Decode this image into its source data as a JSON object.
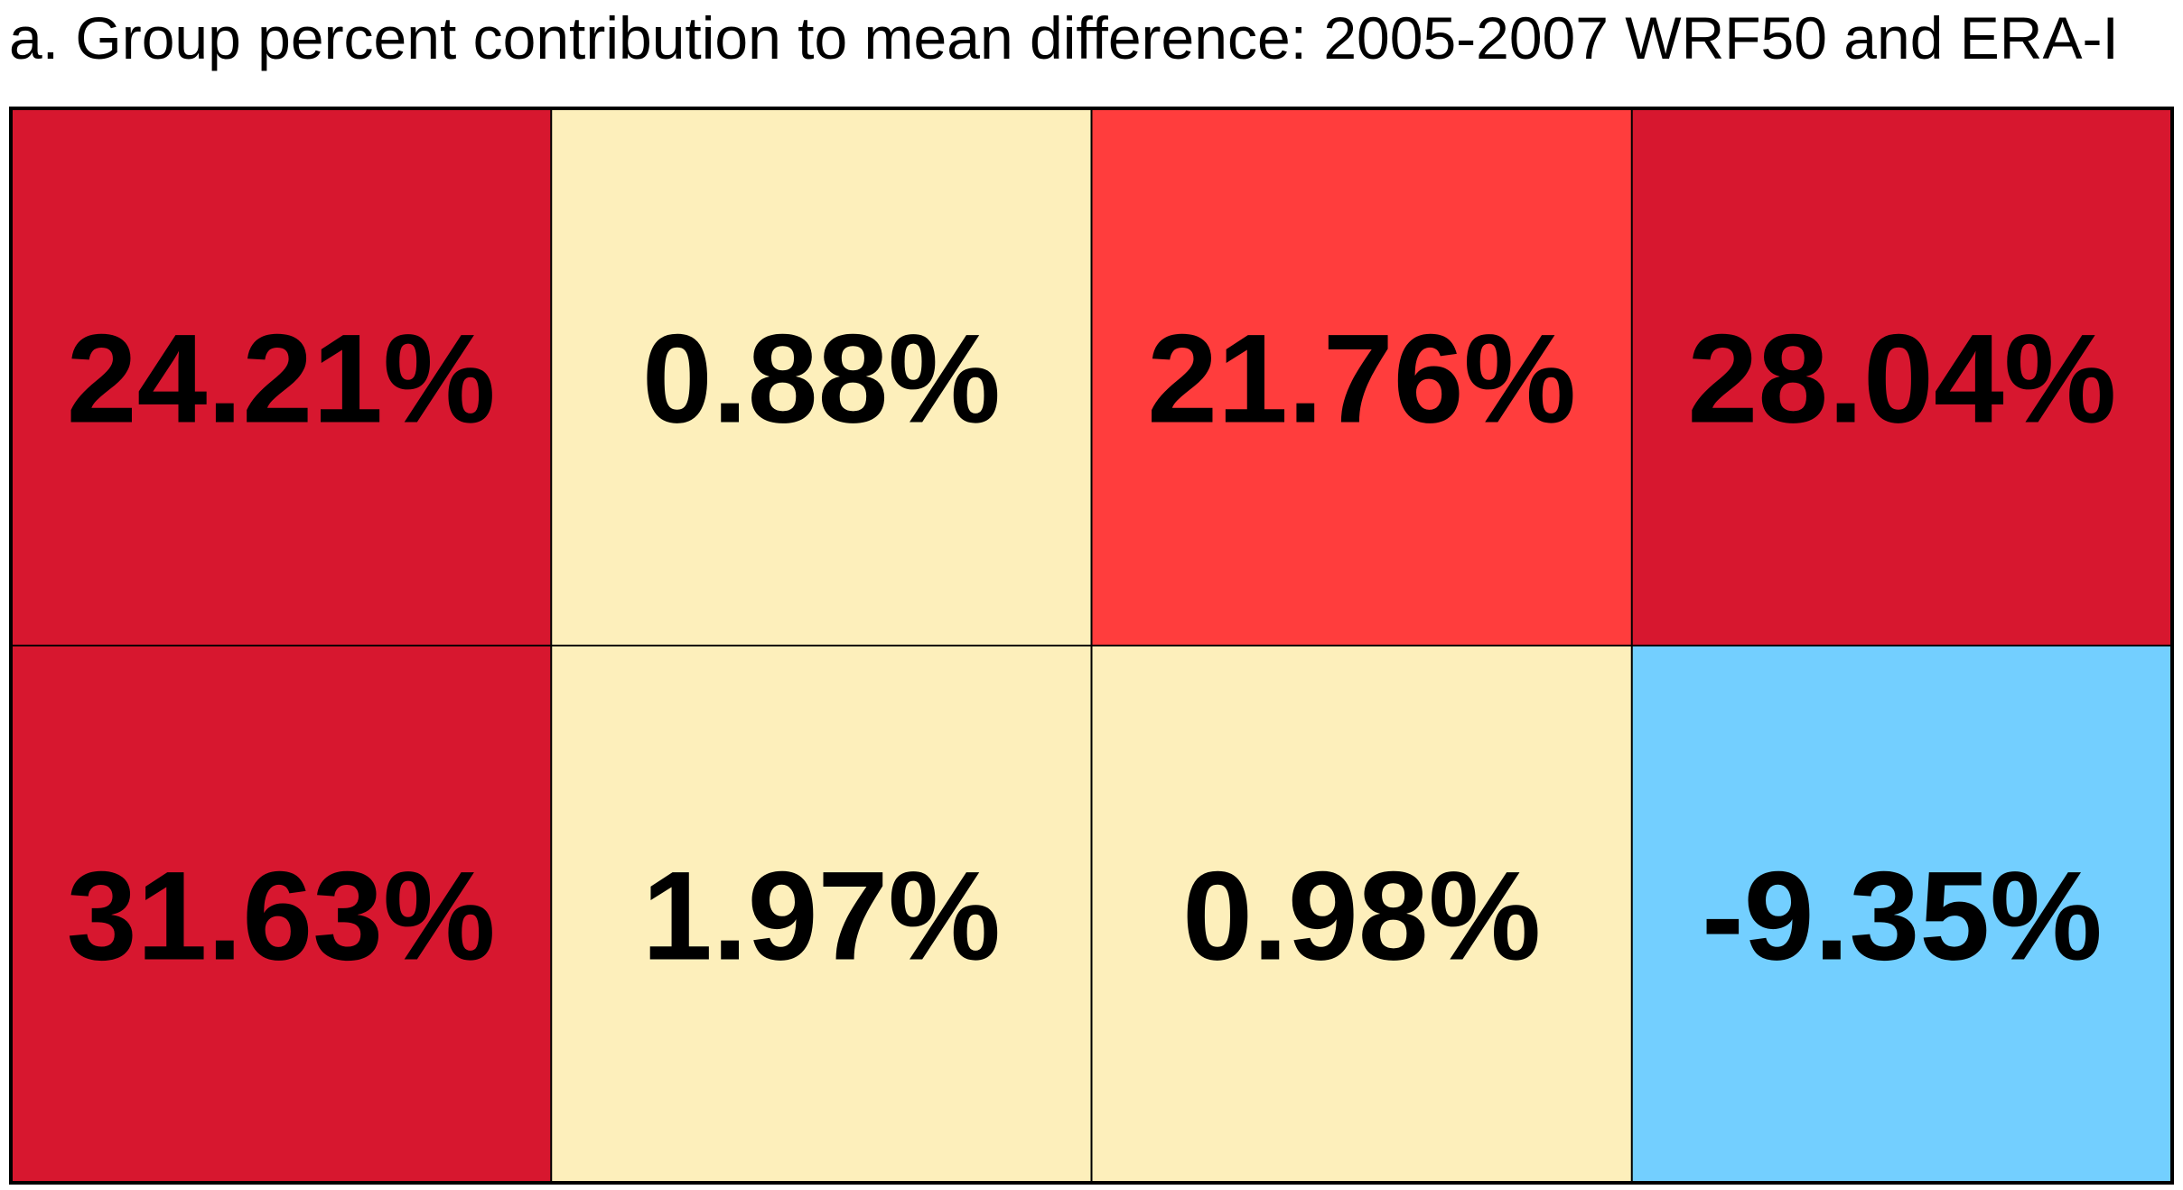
{
  "chart_data": {
    "type": "heatmap",
    "title": "a. Group percent contribution to mean difference: 2005-2007 WRF50 and ERA-I",
    "rows": 2,
    "cols": 4,
    "cells": [
      [
        {
          "value": 24.21,
          "label": "24.21%",
          "color": "#d7172f"
        },
        {
          "value": 0.88,
          "label": "0.88%",
          "color": "#fdefbb"
        },
        {
          "value": 21.76,
          "label": "21.76%",
          "color": "#ff3d3d"
        },
        {
          "value": 28.04,
          "label": "28.04%",
          "color": "#d7172f"
        }
      ],
      [
        {
          "value": 31.63,
          "label": "31.63%",
          "color": "#d7172f"
        },
        {
          "value": 1.97,
          "label": "1.97%",
          "color": "#fdefbb"
        },
        {
          "value": 0.98,
          "label": "0.98%",
          "color": "#fdefbb"
        },
        {
          "value": -9.35,
          "label": "-9.35%",
          "color": "#73cfff"
        }
      ]
    ],
    "grid_color": "#000000"
  }
}
